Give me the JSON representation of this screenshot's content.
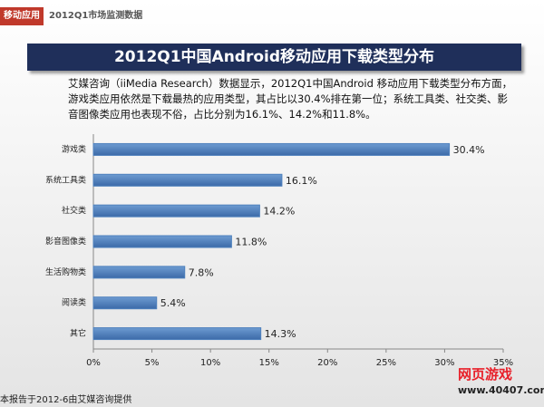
{
  "header": {
    "tab": "移动应用",
    "section": "2012Q1市场监测数据"
  },
  "chart_data": {
    "type": "bar",
    "orientation": "horizontal",
    "title": "2012Q1中国Android移动应用下载类型分布",
    "subtitle": "艾媒咨询（iiMedia Research）数据显示，2012Q1中国Android 移动应用下载类型分布方面，游戏类应用依然是下载最热的应用类型，其占比以30.4%排在第一位；系统工具类、社交类、影音图像类应用也表现不俗，占比分别为16.1%、14.2%和11.8%。",
    "categories": [
      "游戏类",
      "系统工具类",
      "社交类",
      "影音图像类",
      "生活购物类",
      "阅读类",
      "其它"
    ],
    "values": [
      30.4,
      16.1,
      14.2,
      11.8,
      7.8,
      5.4,
      14.3
    ],
    "value_labels": [
      "30.4%",
      "16.1%",
      "14.2%",
      "11.8%",
      "7.8%",
      "5.4%",
      "14.3%"
    ],
    "color": "#4f81bd",
    "xlim": [
      0,
      35
    ],
    "xticks": [
      {
        "value": 0,
        "label": "0%"
      },
      {
        "value": 5,
        "label": "5%"
      },
      {
        "value": 10,
        "label": "10%"
      },
      {
        "value": 15,
        "label": "15%"
      },
      {
        "value": 20,
        "label": "20%"
      },
      {
        "value": 25,
        "label": "25%"
      },
      {
        "value": 30,
        "label": "30%"
      },
      {
        "value": 35,
        "label": "35%"
      }
    ],
    "grid": false
  },
  "footnote": "本报告于2012-6由艾媒咨询提供",
  "watermark": {
    "text": "网页游戏",
    "url": "www.40407.com"
  }
}
